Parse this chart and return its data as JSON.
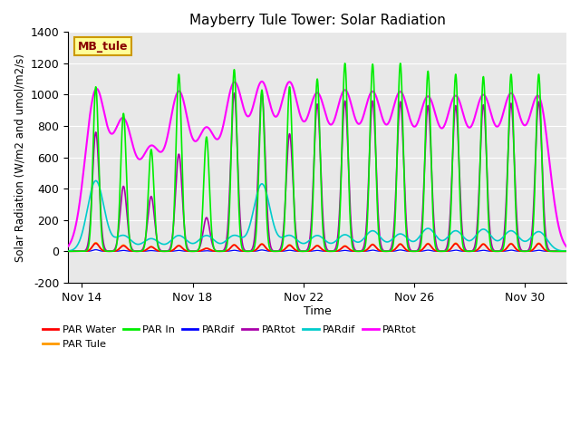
{
  "title": "Mayberry Tule Tower: Solar Radiation",
  "ylabel": "Solar Radiation (W/m2 and umol/m2/s)",
  "xlabel": "Time",
  "ylim": [
    -200,
    1400
  ],
  "xlim_start": 13.5,
  "xlim_end": 31.5,
  "xtick_labels": [
    "Nov 14",
    "Nov 18",
    "Nov 22",
    "Nov 26",
    "Nov 30"
  ],
  "xtick_positions": [
    14,
    18,
    22,
    26,
    30
  ],
  "ytick_positions": [
    -200,
    0,
    200,
    400,
    600,
    800,
    1000,
    1200,
    1400
  ],
  "bg_color": "#e8e8e8",
  "legend_entries": [
    {
      "label": "PAR Water",
      "color": "#ff0000"
    },
    {
      "label": "PAR Tule",
      "color": "#ff9900"
    },
    {
      "label": "PAR In",
      "color": "#00ee00"
    },
    {
      "label": "PARdif",
      "color": "#0000ff"
    },
    {
      "label": "PARtot",
      "color": "#aa00aa"
    },
    {
      "label": "PARdif",
      "color": "#00cccc"
    },
    {
      "label": "PARtot",
      "color": "#ff00ff"
    }
  ],
  "annotation_text": "MB_tule",
  "annotation_bg": "#ffff99",
  "annotation_border": "#cc9900",
  "days_data": [
    {
      "noon": 14.5,
      "green": 1050,
      "magenta": 1010,
      "cyan": 450,
      "purple": 760,
      "orange": 55,
      "red": 50,
      "blue": 10,
      "cloudy": false
    },
    {
      "noon": 15.5,
      "green": 880,
      "magenta": 800,
      "cyan": 100,
      "purple": 415,
      "orange": 40,
      "red": 35,
      "blue": 5,
      "cloudy": true
    },
    {
      "noon": 16.5,
      "green": 650,
      "magenta": 620,
      "cyan": 80,
      "purple": 350,
      "orange": 30,
      "red": 28,
      "blue": 4,
      "cloudy": true
    },
    {
      "noon": 17.5,
      "green": 1130,
      "magenta": 980,
      "cyan": 100,
      "purple": 620,
      "orange": 38,
      "red": 35,
      "blue": 5,
      "cloudy": false
    },
    {
      "noon": 18.5,
      "green": 730,
      "magenta": 730,
      "cyan": 100,
      "purple": 215,
      "orange": 20,
      "red": 18,
      "blue": 3,
      "cloudy": true
    },
    {
      "noon": 19.5,
      "green": 1160,
      "magenta": 1025,
      "cyan": 100,
      "purple": 1010,
      "orange": 42,
      "red": 40,
      "blue": 6,
      "cloudy": false
    },
    {
      "noon": 20.5,
      "green": 1030,
      "magenta": 1020,
      "cyan": 430,
      "purple": 1010,
      "orange": 48,
      "red": 45,
      "blue": 8,
      "cloudy": false
    },
    {
      "noon": 21.5,
      "green": 1050,
      "magenta": 1020,
      "cyan": 100,
      "purple": 750,
      "orange": 42,
      "red": 38,
      "blue": 6,
      "cloudy": false
    },
    {
      "noon": 22.5,
      "green": 1100,
      "magenta": 950,
      "cyan": 100,
      "purple": 940,
      "orange": 38,
      "red": 35,
      "blue": 5,
      "cloudy": false
    },
    {
      "noon": 23.5,
      "green": 1200,
      "magenta": 970,
      "cyan": 105,
      "purple": 960,
      "orange": 35,
      "red": 32,
      "blue": 5,
      "cloudy": false
    },
    {
      "noon": 24.5,
      "green": 1195,
      "magenta": 960,
      "cyan": 130,
      "purple": 960,
      "orange": 45,
      "red": 42,
      "blue": 7,
      "cloudy": false
    },
    {
      "noon": 25.5,
      "green": 1200,
      "magenta": 960,
      "cyan": 110,
      "purple": 955,
      "orange": 48,
      "red": 45,
      "blue": 8,
      "cloudy": false
    },
    {
      "noon": 26.5,
      "green": 1150,
      "magenta": 930,
      "cyan": 145,
      "purple": 930,
      "orange": 50,
      "red": 47,
      "blue": 7,
      "cloudy": false
    },
    {
      "noon": 27.5,
      "green": 1130,
      "magenta": 935,
      "cyan": 130,
      "purple": 930,
      "orange": 52,
      "red": 48,
      "blue": 7,
      "cloudy": false
    },
    {
      "noon": 28.5,
      "green": 1115,
      "magenta": 940,
      "cyan": 140,
      "purple": 935,
      "orange": 48,
      "red": 45,
      "blue": 6,
      "cloudy": false
    },
    {
      "noon": 29.5,
      "green": 1130,
      "magenta": 950,
      "cyan": 130,
      "purple": 945,
      "orange": 50,
      "red": 47,
      "blue": 7,
      "cloudy": false
    },
    {
      "noon": 30.5,
      "green": 1130,
      "magenta": 960,
      "cyan": 125,
      "purple": 955,
      "orange": 52,
      "red": 48,
      "blue": 6,
      "cloudy": false
    }
  ]
}
